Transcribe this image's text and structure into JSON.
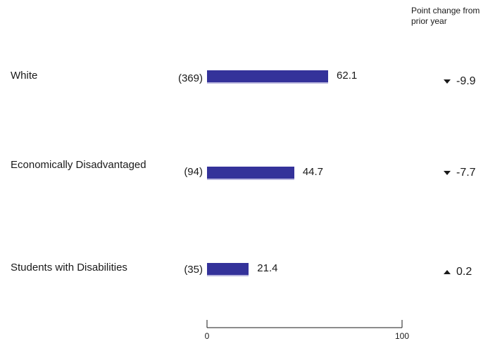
{
  "header": {
    "change_label": "Point change from prior year"
  },
  "colors": {
    "bar": "#34329a",
    "bar_shadow": "#b9b6de",
    "text": "#1a1a1a"
  },
  "chart_data": {
    "type": "bar",
    "orientation": "horizontal",
    "categories": [
      "White",
      "Economically Disadvantaged",
      "Students with Disabilities"
    ],
    "values": [
      62.1,
      44.7,
      21.4
    ],
    "value_labels": [
      "62.1",
      "44.7",
      "21.4"
    ],
    "counts": [
      "(369)",
      "(94)",
      "(35)"
    ],
    "changes": [
      {
        "direction": "down",
        "value": "-9.9"
      },
      {
        "direction": "down",
        "value": "-7.7"
      },
      {
        "direction": "up",
        "value": "0.2"
      }
    ],
    "xlim": [
      0,
      100
    ],
    "x_ticks": [
      "0",
      "100"
    ],
    "grid": false,
    "legend": "none"
  }
}
